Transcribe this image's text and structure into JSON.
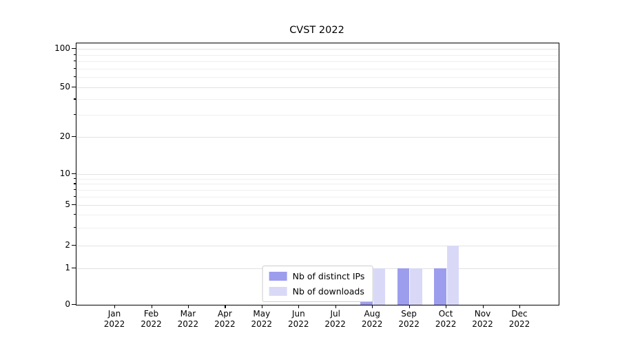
{
  "chart_data": {
    "type": "bar",
    "title": "CVST 2022",
    "categories": [
      "Jan 2022",
      "Feb 2022",
      "Mar 2022",
      "Apr 2022",
      "May 2022",
      "Jun 2022",
      "Jul 2022",
      "Aug 2022",
      "Sep 2022",
      "Oct 2022",
      "Nov 2022",
      "Dec 2022"
    ],
    "series": [
      {
        "name": "Nb of distinct IPs",
        "color": "#9d9dee",
        "values": [
          0,
          0,
          0,
          0,
          0,
          0,
          0,
          1,
          1,
          1,
          0,
          0
        ]
      },
      {
        "name": "Nb of downloads",
        "color": "#d9d9f7",
        "values": [
          0,
          0,
          0,
          0,
          0,
          0,
          0,
          1,
          1,
          2,
          0,
          0
        ]
      }
    ],
    "y_ticks": [
      0,
      1,
      2,
      5,
      10,
      20,
      50,
      100
    ],
    "ylim": [
      0,
      110
    ],
    "yscale": "log-like with zero baseline",
    "xlabel": "",
    "ylabel": "",
    "grid": "horizontal major and minor gridlines",
    "legend_position": "lower center inside plot"
  }
}
